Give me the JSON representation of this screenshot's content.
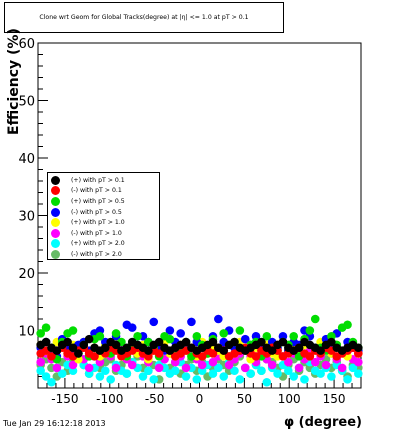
{
  "title": "Clone wrt Geom for Global Tracks(degree) at |η| <= 1.0 at pT > 0.1",
  "footer": "Tue Jan 29 16:12:18 2013",
  "chart_data": {
    "type": "scatter",
    "xlabel": "φ (degree)",
    "ylabel": "Efficiency (%)",
    "xlim": [
      -180,
      180
    ],
    "ylim": [
      0,
      60
    ],
    "xticks": [
      "-150",
      "-100",
      "-50",
      "0",
      "50",
      "100",
      "150"
    ],
    "yticks": [
      "10",
      "20",
      "30",
      "40",
      "50",
      "60"
    ],
    "grid": true,
    "legend_position": "left-middle",
    "x": [
      -177,
      -171,
      -165,
      -159,
      -153,
      -147,
      -141,
      -135,
      -129,
      -123,
      -117,
      -111,
      -105,
      -99,
      -93,
      -87,
      -81,
      -75,
      -69,
      -63,
      -57,
      -51,
      -45,
      -39,
      -33,
      -27,
      -21,
      -15,
      -9,
      -3,
      3,
      9,
      15,
      21,
      27,
      33,
      39,
      45,
      51,
      57,
      63,
      69,
      75,
      81,
      87,
      93,
      99,
      105,
      111,
      117,
      123,
      129,
      135,
      141,
      147,
      153,
      159,
      165,
      171,
      177
    ],
    "series": [
      {
        "name": "(+) with pT > 0.1",
        "color": "#000000",
        "values": [
          7.5,
          8,
          7,
          6.5,
          7.5,
          8,
          7,
          6,
          7.5,
          8.5,
          7,
          6.5,
          7,
          8,
          7.5,
          6.5,
          7,
          8,
          7.5,
          7,
          6.5,
          7.5,
          8,
          7,
          6.5,
          7,
          7.5,
          8,
          7,
          6.5,
          7,
          7.5,
          8,
          7,
          6.5,
          7.5,
          8,
          7,
          6.5,
          7,
          7.5,
          8,
          7,
          6.5,
          7.5,
          8,
          7,
          6.5,
          7,
          8,
          7.5,
          7,
          6.5,
          7.5,
          8,
          7,
          6.5,
          7,
          7.5,
          7
        ]
      },
      {
        "name": "(-) with pT > 0.1",
        "color": "#ff0000",
        "values": [
          6,
          6.5,
          5.5,
          6.5,
          7,
          6,
          5.5,
          6.5,
          7,
          6,
          5.5,
          6.5,
          6,
          7,
          6.5,
          5.5,
          6,
          6.5,
          7,
          6,
          5.5,
          6.5,
          6,
          7,
          6.5,
          5.5,
          6,
          6.5,
          7,
          6,
          5.5,
          6.5,
          6,
          7,
          6.5,
          5.5,
          6,
          6.5,
          7,
          6,
          5.5,
          6.5,
          6,
          7,
          6.5,
          5.5,
          6,
          6.5,
          7,
          6,
          5.5,
          6.5,
          6,
          7,
          6.5,
          5.5,
          6,
          6.5,
          7,
          6
        ]
      },
      {
        "name": "(+) with pT > 0.5",
        "color": "#00dd00",
        "values": [
          9.5,
          10.5,
          7,
          5,
          8,
          9.5,
          10,
          6,
          7.5,
          5.5,
          8.5,
          9,
          7,
          6,
          9.5,
          8,
          5.5,
          7.5,
          9,
          6.5,
          8,
          7,
          5.5,
          9,
          8.5,
          6.5,
          7,
          8,
          5.5,
          9,
          7.5,
          6,
          8.5,
          7,
          9.5,
          5.5,
          8,
          10,
          6.5,
          7.5,
          8,
          5.5,
          9,
          7,
          6.5,
          8,
          7.5,
          9,
          5.5,
          8.5,
          10,
          12,
          7,
          6.5,
          9,
          7.5,
          10.5,
          11,
          8,
          7
        ]
      },
      {
        "name": "(-) with pT > 0.5",
        "color": "#0000ff",
        "values": [
          7,
          8,
          6.5,
          5.5,
          8.5,
          7,
          6,
          7.5,
          8,
          6.5,
          9.5,
          10,
          8,
          7,
          9,
          6.5,
          11,
          10.5,
          7.5,
          9,
          8,
          11.5,
          7,
          6.5,
          10,
          8,
          9.5,
          7,
          11.5,
          8,
          7,
          6.5,
          9,
          12,
          8,
          10,
          7,
          6.5,
          8.5,
          7.5,
          9,
          7,
          6.5,
          8,
          7,
          9,
          6.5,
          8,
          7.5,
          10,
          9,
          7,
          6.5,
          8.5,
          7,
          9.5,
          6.5,
          8,
          7,
          6.5
        ]
      },
      {
        "name": "(+) with pT > 1.0",
        "color": "#ffff00",
        "values": [
          7.5,
          6.5,
          5.5,
          8,
          7,
          6,
          7.5,
          5,
          8,
          6.5,
          7,
          5.5,
          7.5,
          6,
          8,
          6.5,
          5.5,
          7,
          6,
          7.5,
          5,
          6.5,
          7,
          8,
          6,
          5.5,
          7.5,
          6.5,
          7,
          5.5,
          8,
          6,
          7,
          6.5,
          5.5,
          7.5,
          6,
          8,
          6.5,
          5,
          7,
          6.5,
          7.5,
          6,
          5.5,
          8,
          6.5,
          7,
          6,
          7.5,
          5.5,
          6.5,
          8,
          7,
          6,
          7.5,
          6.5,
          5.5,
          7,
          6
        ]
      },
      {
        "name": "(-) with pT > 1.0",
        "color": "#ff00ff",
        "values": [
          4.5,
          6,
          5,
          3.5,
          8,
          5.5,
          4,
          6.5,
          5,
          3.5,
          7,
          4.5,
          6,
          5.5,
          3.5,
          7.5,
          5,
          4,
          6.5,
          5.5,
          4.5,
          7,
          3.5,
          5,
          6,
          4.5,
          5.5,
          3.5,
          6.5,
          5,
          4,
          6,
          4.5,
          5.5,
          7,
          4,
          5,
          6,
          3.5,
          5.5,
          4.5,
          6.5,
          5,
          4,
          7.5,
          5.5,
          4.5,
          6,
          3.5,
          5,
          6.5,
          4.5,
          5.5,
          4,
          6,
          5,
          3.5,
          6.5,
          5,
          4.5
        ]
      },
      {
        "name": "(+) with pT > 2.0",
        "color": "#00ffff",
        "values": [
          3,
          2,
          1,
          3.5,
          2.5,
          4,
          3,
          5.5,
          4,
          2.5,
          3.5,
          2,
          3,
          1.5,
          4,
          3,
          2.5,
          4.5,
          3.5,
          2,
          3,
          1.5,
          4,
          3.5,
          2.5,
          3,
          4.5,
          2,
          3.5,
          1.5,
          3,
          4,
          2.5,
          3.5,
          2,
          4.5,
          3,
          1.5,
          3.5,
          2.5,
          4,
          3,
          1,
          3.5,
          2.5,
          4,
          3,
          2,
          3.5,
          1.5,
          4.5,
          3,
          2.5,
          3.5,
          2,
          4,
          3,
          1.5,
          3.5,
          2.5
        ]
      },
      {
        "name": "(-) with pT > 2.0",
        "color": "#66bb66",
        "values": [
          4,
          5,
          3.5,
          2,
          4.5,
          3,
          5,
          6,
          4,
          2.5,
          5.5,
          3.5,
          4.5,
          5,
          3,
          4,
          2.5,
          4.5,
          5.5,
          3.5,
          3,
          4,
          1.5,
          5,
          3.5,
          4.5,
          2.5,
          4,
          5,
          3,
          4.5,
          2,
          3.5,
          5,
          4,
          3,
          4.5,
          5.5,
          3.5,
          2.5,
          4,
          3,
          5,
          4.5,
          3.5,
          2,
          4,
          5,
          3,
          4.5,
          3.5,
          2.5,
          4,
          5,
          3.5,
          4.5,
          3,
          2,
          4,
          3.5
        ]
      }
    ]
  }
}
